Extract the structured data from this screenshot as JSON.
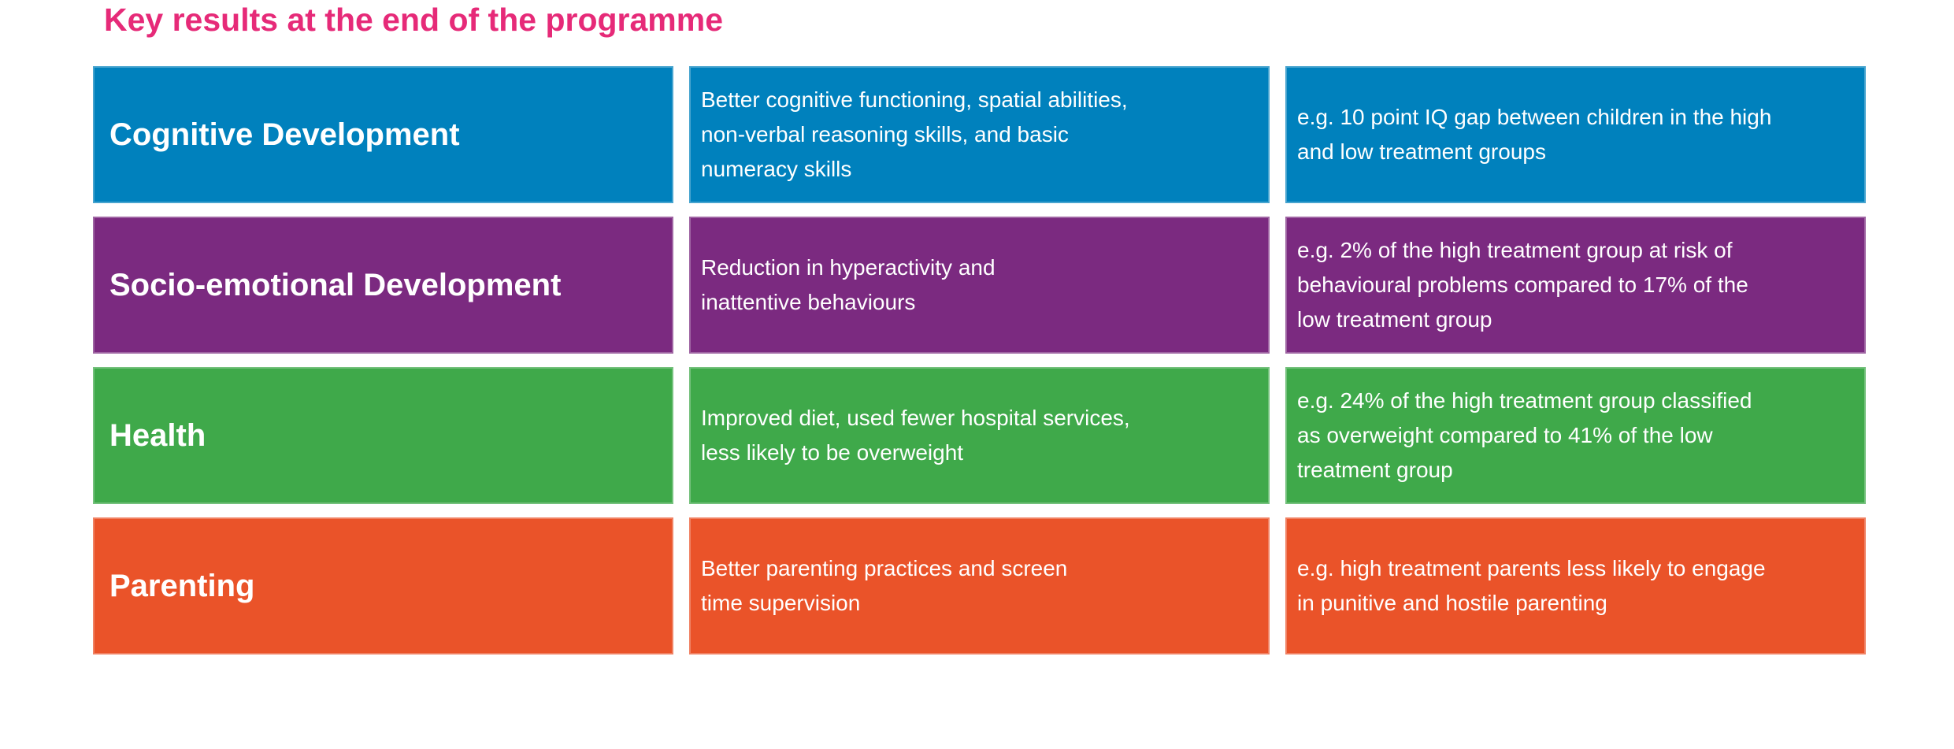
{
  "page": {
    "title": "Key results at the end of the programme"
  },
  "colors": {
    "title_pink": "#e62a78",
    "row_blue": "#0081bd",
    "row_purple": "#7b2a80",
    "row_green": "#3fa94a",
    "row_orange": "#ea5329",
    "text": "#ffffff",
    "background": "#ffffff"
  },
  "chart_data": {
    "type": "table",
    "title": "Key results at the end of the programme",
    "layout": {
      "columns": 3,
      "header_row": false,
      "colored_rows": true
    },
    "rows": [
      {
        "category": "Cognitive Development",
        "finding": "Better cognitive functioning, spatial abilities,\nnon-verbal reasoning skills, and basic\nnumeracy skills",
        "example": "e.g. 10 point IQ gap between children in the high\nand low treatment groups",
        "color": "#0081bd"
      },
      {
        "category": "Socio-emotional Development",
        "finding": "Reduction in hyperactivity and\ninattentive behaviours",
        "example": "e.g. 2% of the high treatment group at risk of\nbehavioural problems compared to 17% of the\nlow treatment group",
        "color": "#7b2a80"
      },
      {
        "category": "Health",
        "finding": "Improved diet, used fewer hospital services,\nless likely to be overweight",
        "example": "e.g. 24% of the high treatment group classified\nas overweight compared to 41% of the low\ntreatment group",
        "color": "#3fa94a"
      },
      {
        "category": "Parenting",
        "finding": "Better parenting practices and screen\ntime supervision",
        "example": "e.g. high treatment parents less likely to engage\nin punitive and hostile parenting",
        "color": "#ea5329"
      }
    ]
  }
}
